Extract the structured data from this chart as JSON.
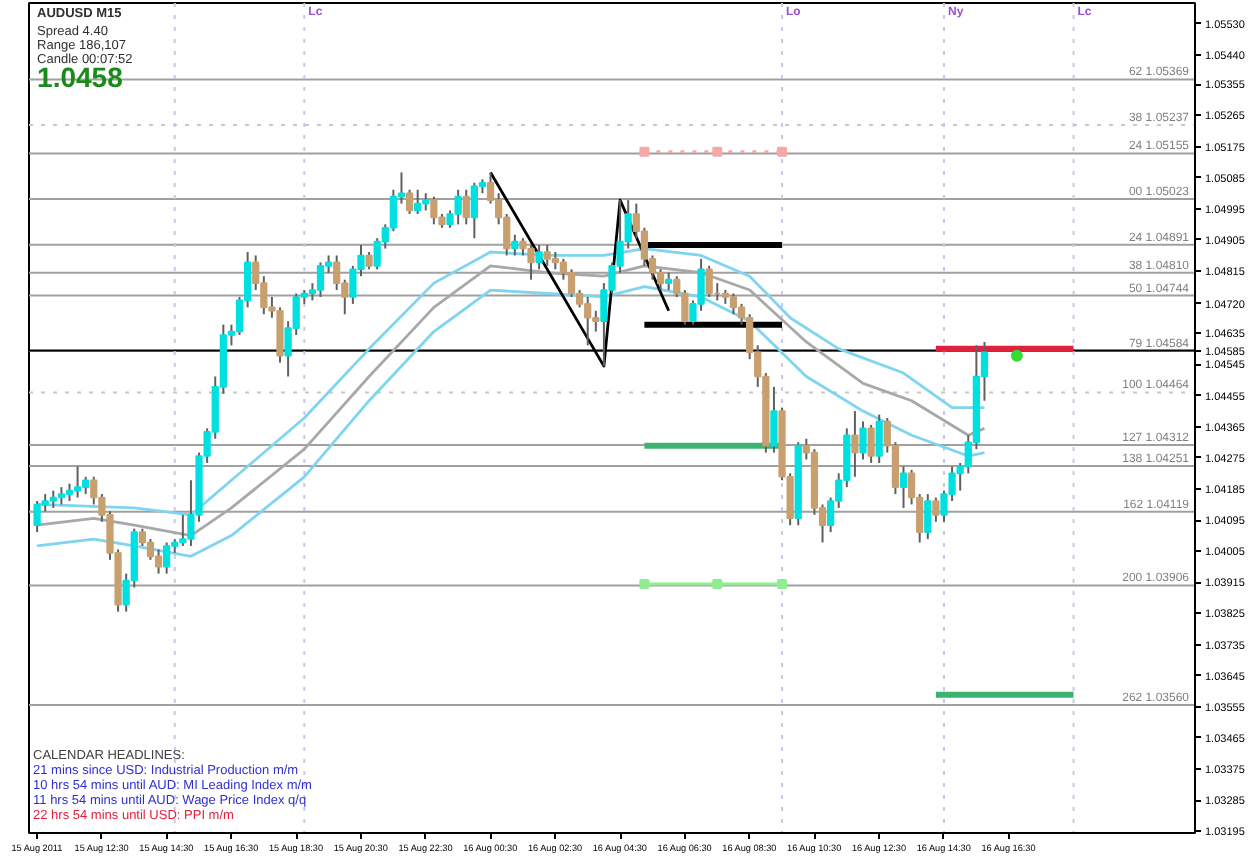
{
  "chart_data": {
    "type": "candlestick",
    "x": [
      "2011-08-15T10:30",
      "2011-08-15T10:45",
      "2011-08-15T11:00",
      "2011-08-15T11:15",
      "2011-08-15T11:30",
      "2011-08-15T11:45",
      "2011-08-15T12:00",
      "2011-08-15T12:15",
      "2011-08-15T12:30",
      "2011-08-15T12:45",
      "2011-08-15T13:00",
      "2011-08-15T13:15",
      "2011-08-15T13:30",
      "2011-08-15T13:45",
      "2011-08-15T14:00",
      "2011-08-15T14:15",
      "2011-08-15T14:30",
      "2011-08-15T14:45",
      "2011-08-15T15:00",
      "2011-08-15T15:15",
      "2011-08-15T15:30",
      "2011-08-15T15:45",
      "2011-08-15T16:00",
      "2011-08-15T16:15",
      "2011-08-15T16:30",
      "2011-08-15T16:45",
      "2011-08-15T17:00",
      "2011-08-15T17:15",
      "2011-08-15T17:30",
      "2011-08-15T17:45",
      "2011-08-15T18:00",
      "2011-08-15T18:15",
      "2011-08-15T18:30",
      "2011-08-15T18:45",
      "2011-08-15T19:00",
      "2011-08-15T19:15",
      "2011-08-15T19:30",
      "2011-08-15T19:45",
      "2011-08-15T20:00",
      "2011-08-15T20:15",
      "2011-08-15T20:30",
      "2011-08-15T20:45",
      "2011-08-15T21:00",
      "2011-08-15T21:15",
      "2011-08-15T21:30",
      "2011-08-15T21:45",
      "2011-08-15T22:00",
      "2011-08-15T22:15",
      "2011-08-15T22:30",
      "2011-08-15T22:45",
      "2011-08-15T23:00",
      "2011-08-15T23:15",
      "2011-08-15T23:30",
      "2011-08-15T23:45",
      "2011-08-16T00:00",
      "2011-08-16T00:15",
      "2011-08-16T00:30",
      "2011-08-16T00:45",
      "2011-08-16T01:00",
      "2011-08-16T01:15",
      "2011-08-16T01:30",
      "2011-08-16T01:45",
      "2011-08-16T02:00",
      "2011-08-16T02:15",
      "2011-08-16T02:30",
      "2011-08-16T02:45",
      "2011-08-16T03:00",
      "2011-08-16T03:15",
      "2011-08-16T03:30",
      "2011-08-16T03:45",
      "2011-08-16T04:00",
      "2011-08-16T04:15",
      "2011-08-16T04:30",
      "2011-08-16T04:45",
      "2011-08-16T05:00",
      "2011-08-16T05:15",
      "2011-08-16T05:30",
      "2011-08-16T05:45",
      "2011-08-16T06:00",
      "2011-08-16T06:15",
      "2011-08-16T06:30",
      "2011-08-16T06:45",
      "2011-08-16T07:00",
      "2011-08-16T07:15",
      "2011-08-16T07:30",
      "2011-08-16T07:45",
      "2011-08-16T08:00",
      "2011-08-16T08:15",
      "2011-08-16T08:30",
      "2011-08-16T08:45",
      "2011-08-16T09:00",
      "2011-08-16T09:15",
      "2011-08-16T09:30",
      "2011-08-16T09:45",
      "2011-08-16T10:00",
      "2011-08-16T10:15",
      "2011-08-16T10:30",
      "2011-08-16T10:45",
      "2011-08-16T11:00",
      "2011-08-16T11:15",
      "2011-08-16T11:30",
      "2011-08-16T11:45",
      "2011-08-16T12:00",
      "2011-08-16T12:15",
      "2011-08-16T12:30",
      "2011-08-16T12:45",
      "2011-08-16T13:00",
      "2011-08-16T13:15",
      "2011-08-16T13:30",
      "2011-08-16T13:45",
      "2011-08-16T14:00",
      "2011-08-16T14:15",
      "2011-08-16T14:30",
      "2011-08-16T14:45",
      "2011-08-16T15:00",
      "2011-08-16T15:15",
      "2011-08-16T15:30",
      "2011-08-16T15:45"
    ],
    "ohlc": [
      [
        1.0408,
        1.0415,
        1.0406,
        1.0414
      ],
      [
        1.0414,
        1.0417,
        1.0412,
        1.0415
      ],
      [
        1.0415,
        1.0418,
        1.0413,
        1.0416
      ],
      [
        1.0416,
        1.0419,
        1.0414,
        1.0417
      ],
      [
        1.0417,
        1.042,
        1.0415,
        1.0418
      ],
      [
        1.0418,
        1.0425,
        1.0416,
        1.0419
      ],
      [
        1.0419,
        1.0422,
        1.0417,
        1.0421
      ],
      [
        1.0421,
        1.0422,
        1.0414,
        1.0416
      ],
      [
        1.0416,
        1.0417,
        1.0409,
        1.0411
      ],
      [
        1.0411,
        1.0412,
        1.0398,
        1.04
      ],
      [
        1.04,
        1.0401,
        1.0383,
        1.0385
      ],
      [
        1.0385,
        1.0394,
        1.0383,
        1.0392
      ],
      [
        1.0392,
        1.0407,
        1.039,
        1.0406
      ],
      [
        1.0406,
        1.0407,
        1.0402,
        1.0403
      ],
      [
        1.0403,
        1.0404,
        1.0398,
        1.0399
      ],
      [
        1.0399,
        1.0401,
        1.0394,
        1.0396
      ],
      [
        1.0396,
        1.0403,
        1.0394,
        1.0402
      ],
      [
        1.0402,
        1.0404,
        1.04,
        1.0403
      ],
      [
        1.0403,
        1.0411,
        1.0402,
        1.0404
      ],
      [
        1.0404,
        1.0421,
        1.0402,
        1.0411
      ],
      [
        1.0411,
        1.0429,
        1.0409,
        1.0428
      ],
      [
        1.0428,
        1.0436,
        1.0426,
        1.0435
      ],
      [
        1.0435,
        1.0451,
        1.0433,
        1.0448
      ],
      [
        1.0448,
        1.0466,
        1.0446,
        1.0463
      ],
      [
        1.0463,
        1.0466,
        1.046,
        1.0464
      ],
      [
        1.0464,
        1.0474,
        1.0463,
        1.0473
      ],
      [
        1.0473,
        1.0487,
        1.0471,
        1.0484
      ],
      [
        1.0484,
        1.0486,
        1.0476,
        1.0478
      ],
      [
        1.0478,
        1.048,
        1.0469,
        1.0471
      ],
      [
        1.0471,
        1.0474,
        1.0468,
        1.047
      ],
      [
        1.047,
        1.0471,
        1.0455,
        1.0457
      ],
      [
        1.0457,
        1.0467,
        1.0451,
        1.0465
      ],
      [
        1.0465,
        1.0475,
        1.0463,
        1.0474
      ],
      [
        1.0474,
        1.0476,
        1.0472,
        1.0475
      ],
      [
        1.0475,
        1.0478,
        1.0473,
        1.0476
      ],
      [
        1.0476,
        1.0484,
        1.0474,
        1.0483
      ],
      [
        1.0483,
        1.0486,
        1.0481,
        1.0484
      ],
      [
        1.0484,
        1.0486,
        1.0476,
        1.0478
      ],
      [
        1.0478,
        1.0479,
        1.0469,
        1.0474
      ],
      [
        1.0474,
        1.0483,
        1.0472,
        1.0482
      ],
      [
        1.0482,
        1.0489,
        1.048,
        1.0486
      ],
      [
        1.0486,
        1.0487,
        1.0482,
        1.0483
      ],
      [
        1.0483,
        1.0491,
        1.0482,
        1.049
      ],
      [
        1.049,
        1.0495,
        1.0488,
        1.0494
      ],
      [
        1.0494,
        1.0505,
        1.0493,
        1.0503
      ],
      [
        1.0503,
        1.051,
        1.0501,
        1.0504
      ],
      [
        1.0504,
        1.0505,
        1.0498,
        1.0499
      ],
      [
        1.0499,
        1.0505,
        1.0498,
        1.0501
      ],
      [
        1.0501,
        1.0504,
        1.0499,
        1.0502
      ],
      [
        1.0502,
        1.0503,
        1.0495,
        1.0497
      ],
      [
        1.0497,
        1.0498,
        1.0494,
        1.0495
      ],
      [
        1.0495,
        1.0499,
        1.0494,
        1.0498
      ],
      [
        1.0498,
        1.0505,
        1.0495,
        1.0503
      ],
      [
        1.0503,
        1.0505,
        1.0495,
        1.0497
      ],
      [
        1.0497,
        1.0507,
        1.0491,
        1.0506
      ],
      [
        1.0506,
        1.0508,
        1.0504,
        1.0507
      ],
      [
        1.0507,
        1.051,
        1.0501,
        1.0502
      ],
      [
        1.0502,
        1.0504,
        1.0495,
        1.0497
      ],
      [
        1.0497,
        1.0498,
        1.0486,
        1.0488
      ],
      [
        1.0488,
        1.0492,
        1.0486,
        1.049
      ],
      [
        1.049,
        1.0491,
        1.0486,
        1.0488
      ],
      [
        1.0488,
        1.0489,
        1.0479,
        1.0484
      ],
      [
        1.0484,
        1.0489,
        1.0482,
        1.0487
      ],
      [
        1.0487,
        1.0489,
        1.0483,
        1.0485
      ],
      [
        1.0485,
        1.0487,
        1.0482,
        1.0484
      ],
      [
        1.0484,
        1.0485,
        1.0479,
        1.0481
      ],
      [
        1.0481,
        1.0482,
        1.0474,
        1.0475
      ],
      [
        1.0475,
        1.0476,
        1.0471,
        1.0472
      ],
      [
        1.0472,
        1.0474,
        1.046,
        1.0468
      ],
      [
        1.0468,
        1.047,
        1.0464,
        1.0467
      ],
      [
        1.0467,
        1.0478,
        1.0454,
        1.0476
      ],
      [
        1.0476,
        1.0484,
        1.0475,
        1.0483
      ],
      [
        1.0483,
        1.0502,
        1.0481,
        1.049
      ],
      [
        1.049,
        1.0502,
        1.0488,
        1.0498
      ],
      [
        1.0498,
        1.0501,
        1.0491,
        1.0493
      ],
      [
        1.0493,
        1.0494,
        1.0483,
        1.0485
      ],
      [
        1.0485,
        1.0486,
        1.0479,
        1.0481
      ],
      [
        1.0481,
        1.0482,
        1.0476,
        1.0478
      ],
      [
        1.0478,
        1.0481,
        1.0476,
        1.0479
      ],
      [
        1.0479,
        1.048,
        1.0474,
        1.0475
      ],
      [
        1.0475,
        1.0476,
        1.0466,
        1.0467
      ],
      [
        1.0467,
        1.0473,
        1.0466,
        1.0472
      ],
      [
        1.0472,
        1.0485,
        1.047,
        1.0482
      ],
      [
        1.0482,
        1.0483,
        1.0474,
        1.0475
      ],
      [
        1.0475,
        1.0478,
        1.0473,
        1.0475
      ],
      [
        1.0475,
        1.0476,
        1.0472,
        1.0474
      ],
      [
        1.0474,
        1.0475,
        1.0469,
        1.0471
      ],
      [
        1.0471,
        1.0472,
        1.0466,
        1.0468
      ],
      [
        1.0468,
        1.0469,
        1.0456,
        1.0458
      ],
      [
        1.0458,
        1.046,
        1.0448,
        1.0451
      ],
      [
        1.0451,
        1.0452,
        1.0429,
        1.0431
      ],
      [
        1.0431,
        1.0448,
        1.0429,
        1.0441
      ],
      [
        1.0441,
        1.0442,
        1.0421,
        1.0422
      ],
      [
        1.0422,
        1.0423,
        1.0408,
        1.041
      ],
      [
        1.041,
        1.0432,
        1.0408,
        1.0431
      ],
      [
        1.0431,
        1.0433,
        1.0427,
        1.0429
      ],
      [
        1.0429,
        1.043,
        1.0411,
        1.0413
      ],
      [
        1.0413,
        1.0414,
        1.0403,
        1.0408
      ],
      [
        1.0408,
        1.0416,
        1.0406,
        1.0415
      ],
      [
        1.0415,
        1.0423,
        1.0413,
        1.0421
      ],
      [
        1.0421,
        1.0436,
        1.0419,
        1.0434
      ],
      [
        1.0434,
        1.0441,
        1.0422,
        1.0429
      ],
      [
        1.0429,
        1.0438,
        1.0427,
        1.0436
      ],
      [
        1.0436,
        1.0437,
        1.0426,
        1.0428
      ],
      [
        1.0428,
        1.044,
        1.0426,
        1.0438
      ],
      [
        1.0438,
        1.0439,
        1.0429,
        1.0431
      ],
      [
        1.0431,
        1.0432,
        1.0417,
        1.0419
      ],
      [
        1.0419,
        1.0425,
        1.0413,
        1.0423
      ],
      [
        1.0423,
        1.0424,
        1.0414,
        1.0416
      ],
      [
        1.0416,
        1.0417,
        1.0403,
        1.0406
      ],
      [
        1.0406,
        1.0417,
        1.0404,
        1.0415
      ],
      [
        1.0415,
        1.0416,
        1.0409,
        1.0411
      ],
      [
        1.0411,
        1.0418,
        1.0409,
        1.0417
      ],
      [
        1.0417,
        1.0425,
        1.0415,
        1.0423
      ],
      [
        1.0423,
        1.0426,
        1.0418,
        1.0425
      ],
      [
        1.0425,
        1.0434,
        1.0423,
        1.0432
      ],
      [
        1.0432,
        1.046,
        1.043,
        1.0451
      ],
      [
        1.0451,
        1.0461,
        1.0444,
        1.0458
      ]
    ],
    "colors": [
      "#00e0e0",
      "#00e0e0",
      "#00e0e0",
      "#00e0e0",
      "#00e0e0",
      "#00e0e0",
      "#00e0e0",
      "#c8a070",
      "#c8a070",
      "#c8a070",
      "#c8a070",
      "#00e0e0",
      "#00e0e0",
      "#c8a070",
      "#c8a070",
      "#c8a070",
      "#00e0e0",
      "#00e0e0",
      "#00e0e0",
      "#00e0e0",
      "#00e0e0",
      "#00e0e0",
      "#00e0e0",
      "#00e0e0",
      "#00e0e0",
      "#00e0e0",
      "#00e0e0",
      "#c8a070",
      "#c8a070",
      "#c8a070",
      "#c8a070",
      "#00e0e0",
      "#00e0e0",
      "#00e0e0",
      "#00e0e0",
      "#00e0e0",
      "#00e0e0",
      "#c8a070",
      "#c8a070",
      "#00e0e0",
      "#00e0e0",
      "#c8a070",
      "#00e0e0",
      "#00e0e0",
      "#00e0e0",
      "#00e0e0",
      "#c8a070",
      "#00e0e0",
      "#00e0e0",
      "#c8a070",
      "#c8a070",
      "#00e0e0",
      "#00e0e0",
      "#c8a070",
      "#00e0e0",
      "#00e0e0",
      "#c8a070",
      "#c8a070",
      "#c8a070",
      "#00e0e0",
      "#c8a070",
      "#c8a070",
      "#00e0e0",
      "#c8a070",
      "#c8a070",
      "#c8a070",
      "#c8a070",
      "#c8a070",
      "#c8a070",
      "#c8a070",
      "#00e0e0",
      "#00e0e0",
      "#00e0e0",
      "#00e0e0",
      "#c8a070",
      "#c8a070",
      "#c8a070",
      "#c8a070",
      "#00e0e0",
      "#c8a070",
      "#c8a070",
      "#00e0e0",
      "#00e0e0",
      "#c8a070",
      "#c8a070",
      "#c8a070",
      "#c8a070",
      "#c8a070",
      "#c8a070",
      "#c8a070",
      "#c8a070",
      "#00e0e0",
      "#c8a070",
      "#c8a070",
      "#00e0e0",
      "#c8a070",
      "#c8a070",
      "#c8a070",
      "#00e0e0",
      "#00e0e0",
      "#00e0e0",
      "#c8a070",
      "#00e0e0",
      "#c8a070",
      "#00e0e0",
      "#c8a070",
      "#c8a070",
      "#00e0e0",
      "#c8a070",
      "#c8a070",
      "#00e0e0",
      "#c8a070",
      "#00e0e0",
      "#00e0e0",
      "#00e0e0",
      "#00e0e0",
      "#00e0e0",
      "#00e0e0"
    ],
    "series": [
      {
        "type": "line",
        "color": "#7fd4f0",
        "x": [
          "2011-08-15T10:30",
          "2011-08-15T13:30",
          "2011-08-15T15:15",
          "2011-08-15T16:30",
          "2011-08-15T18:45",
          "2011-08-15T20:45",
          "2011-08-15T22:45",
          "2011-08-16T00:30",
          "2011-08-16T02:15",
          "2011-08-16T04:00",
          "2011-08-16T05:15",
          "2011-08-16T07:00",
          "2011-08-16T08:30",
          "2011-08-16T09:45",
          "2011-08-16T11:15",
          "2011-08-16T13:15",
          "2011-08-16T14:45",
          "2011-08-16T15:45"
        ],
        "values": [
          1.0414,
          1.0413,
          1.0411,
          1.0421,
          1.0439,
          1.0459,
          1.0478,
          1.0487,
          1.0486,
          1.0486,
          1.0488,
          1.0486,
          1.048,
          1.0468,
          1.0459,
          1.0452,
          1.0442,
          1.0442
        ]
      },
      {
        "type": "line",
        "color": "#a8a8a8",
        "x": [
          "2011-08-15T10:30",
          "2011-08-15T12:15",
          "2011-08-15T13:30",
          "2011-08-15T15:15",
          "2011-08-15T16:30",
          "2011-08-15T18:45",
          "2011-08-15T20:45",
          "2011-08-15T22:45",
          "2011-08-16T00:30",
          "2011-08-16T02:15",
          "2011-08-16T04:00",
          "2011-08-16T05:15",
          "2011-08-16T07:00",
          "2011-08-16T08:30",
          "2011-08-16T10:15",
          "2011-08-16T12:00",
          "2011-08-16T13:30",
          "2011-08-16T15:15",
          "2011-08-16T15:45"
        ],
        "values": [
          1.0408,
          1.041,
          1.0408,
          1.0405,
          1.0413,
          1.043,
          1.0451,
          1.0471,
          1.0483,
          1.0481,
          1.048,
          1.0483,
          1.0481,
          1.0476,
          1.0461,
          1.0449,
          1.0444,
          1.0434,
          1.0436
        ]
      },
      {
        "type": "line",
        "color": "#7fd4f0",
        "x": [
          "2011-08-15T10:30",
          "2011-08-15T12:15",
          "2011-08-15T13:30",
          "2011-08-15T15:15",
          "2011-08-15T16:30",
          "2011-08-15T18:45",
          "2011-08-15T20:45",
          "2011-08-15T22:45",
          "2011-08-16T00:30",
          "2011-08-16T02:15",
          "2011-08-16T04:00",
          "2011-08-16T05:15",
          "2011-08-16T07:00",
          "2011-08-16T08:30",
          "2011-08-16T10:15",
          "2011-08-16T12:00",
          "2011-08-16T13:30",
          "2011-08-16T15:15",
          "2011-08-16T15:45"
        ],
        "values": [
          1.0402,
          1.0404,
          1.0402,
          1.0399,
          1.0405,
          1.0422,
          1.0444,
          1.0464,
          1.0476,
          1.0475,
          1.0474,
          1.0477,
          1.0474,
          1.0467,
          1.0451,
          1.0441,
          1.0434,
          1.0428,
          1.0429
        ]
      },
      {
        "type": "line",
        "color": "#000000",
        "x": [
          "2011-08-16T00:30",
          "2011-08-16T04:00",
          "2011-08-16T04:30",
          "2011-08-16T06:00"
        ],
        "values": [
          1.051,
          1.0454,
          1.0502,
          1.047
        ]
      },
      {
        "type": "line",
        "color": "#000000",
        "x": [
          "2011-08-16T05:15",
          "2011-08-16T09:30"
        ],
        "values": [
          1.0489,
          1.0489
        ]
      },
      {
        "type": "line",
        "color": "#000000",
        "x": [
          "2011-08-16T05:15",
          "2011-08-16T09:30"
        ],
        "values": [
          1.0466,
          1.0466
        ]
      },
      {
        "type": "line",
        "color": "#f4a8a8",
        "line_style": "dotted",
        "marker": "square",
        "x": [
          "2011-08-16T05:15",
          "2011-08-16T07:30",
          "2011-08-16T09:30"
        ],
        "values": [
          1.0516,
          1.0516,
          1.0516
        ]
      },
      {
        "type": "line",
        "color": "#3cb371",
        "x": [
          "2011-08-16T05:15",
          "2011-08-16T09:30"
        ],
        "values": [
          1.0431,
          1.0431
        ]
      },
      {
        "type": "line",
        "color": "#90ee90",
        "marker": "square",
        "x": [
          "2011-08-16T05:15",
          "2011-08-16T07:30",
          "2011-08-16T09:30"
        ],
        "values": [
          1.0391,
          1.0391,
          1.0391
        ]
      },
      {
        "type": "line",
        "color": "#e0203c",
        "x": [
          "2011-08-16T14:15",
          "2011-08-16T18:30"
        ],
        "values": [
          1.0459,
          1.0459
        ]
      },
      {
        "type": "line",
        "color": "#3cb371",
        "x": [
          "2011-08-16T14:15",
          "2011-08-16T18:30"
        ],
        "values": [
          1.0359,
          1.0359
        ]
      },
      {
        "type": "scatter",
        "color": "#33dd33",
        "marker": "circle",
        "x": [
          "2011-08-16T16:45"
        ],
        "values": [
          1.0457
        ]
      }
    ],
    "ref_lines": [
      {
        "axis": "y",
        "value": 1.05369,
        "label": "62 1.05369",
        "color": "#a0a0a0"
      },
      {
        "axis": "y",
        "value": 1.05237,
        "label": "38 1.05237",
        "color": "#c8c8c8",
        "line_style": "dotted"
      },
      {
        "axis": "y",
        "value": 1.05155,
        "label": "24 1.05155",
        "color": "#a0a0a0"
      },
      {
        "axis": "y",
        "value": 1.05023,
        "label": "00 1.05023",
        "color": "#a0a0a0"
      },
      {
        "axis": "y",
        "value": 1.04891,
        "label": "24 1.04891",
        "color": "#a0a0a0"
      },
      {
        "axis": "y",
        "value": 1.0481,
        "label": "38 1.04810",
        "color": "#a0a0a0"
      },
      {
        "axis": "y",
        "value": 1.04744,
        "label": "50 1.04744",
        "color": "#a0a0a0"
      },
      {
        "axis": "y",
        "value": 1.04584,
        "label": "79 1.04584",
        "color": "#a0a0a0"
      },
      {
        "axis": "y",
        "value": 1.04464,
        "label": "100 1.04464",
        "color": "#c8c8c8",
        "line_style": "dotted"
      },
      {
        "axis": "y",
        "value": 1.04312,
        "label": "127 1.04312",
        "color": "#a0a0a0"
      },
      {
        "axis": "y",
        "value": 1.04251,
        "label": "138 1.04251",
        "color": "#a0a0a0"
      },
      {
        "axis": "y",
        "value": 1.04119,
        "label": "162 1.04119",
        "color": "#a0a0a0"
      },
      {
        "axis": "y",
        "value": 1.03906,
        "label": "200 1.03906",
        "color": "#a0a0a0"
      },
      {
        "axis": "y",
        "value": 1.0356,
        "label": "262 1.03560",
        "color": "#a0a0a0"
      },
      {
        "axis": "y",
        "value": 1.04585,
        "color": "#000000"
      },
      {
        "axis": "x",
        "value": "2011-08-15T14:45",
        "color": "#c8c8e8",
        "line_style": "dotted"
      },
      {
        "axis": "x",
        "value": "2011-08-15T18:45",
        "label": "Lc",
        "color": "#c8c8e8",
        "line_style": "dotted"
      },
      {
        "axis": "x",
        "value": "2011-08-16T09:30",
        "label": "Lo",
        "color": "#c8c8e8",
        "line_style": "dotted"
      },
      {
        "axis": "x",
        "value": "2011-08-16T14:30",
        "label": "Ny",
        "color": "#c8c8e8",
        "line_style": "dotted"
      },
      {
        "axis": "x",
        "value": "2011-08-16T18:30",
        "label": "Lc",
        "color": "#c8c8e8",
        "line_style": "dotted"
      }
    ],
    "annotations": [
      "AUDUSD   M15",
      "Spread  4.40",
      "Range  186,107",
      "Candle  00:07:52",
      "1.0458",
      "CALENDAR HEADLINES:",
      "21 mins since USD: Industrial Production m/m",
      "10 hrs 54 mins until AUD: MI Leading Index m/m",
      "11 hrs 54 mins until AUD: Wage Price Index q/q",
      "22 hrs 54 mins until USD: PPI m/m"
    ],
    "xlim": [
      "2011-08-15T10:15",
      "2011-08-16T22:15"
    ],
    "ylim": [
      1.0319,
      1.0559
    ],
    "xticks": [
      {
        "value": "2011-08-15T10:30",
        "label": "15 Aug 2011"
      },
      {
        "value": "2011-08-15T12:30",
        "label": "15 Aug 12:30"
      },
      {
        "value": "2011-08-15T14:30",
        "label": "15 Aug 14:30"
      },
      {
        "value": "2011-08-15T16:30",
        "label": "15 Aug 16:30"
      },
      {
        "value": "2011-08-15T18:30",
        "label": "15 Aug 18:30"
      },
      {
        "value": "2011-08-15T20:30",
        "label": "15 Aug 20:30"
      },
      {
        "value": "2011-08-15T22:30",
        "label": "15 Aug 22:30"
      },
      {
        "value": "2011-08-16T00:30",
        "label": "16 Aug 00:30"
      },
      {
        "value": "2011-08-16T02:30",
        "label": "16 Aug 02:30"
      },
      {
        "value": "2011-08-16T04:30",
        "label": "16 Aug 04:30"
      },
      {
        "value": "2011-08-16T06:30",
        "label": "16 Aug 06:30"
      },
      {
        "value": "2011-08-16T08:30",
        "label": "16 Aug 08:30"
      },
      {
        "value": "2011-08-16T10:30",
        "label": "16 Aug 10:30"
      },
      {
        "value": "2011-08-16T12:30",
        "label": "16 Aug 12:30"
      },
      {
        "value": "2011-08-16T14:30",
        "label": "16 Aug 14:30"
      },
      {
        "value": "2011-08-16T16:30",
        "label": "16 Aug 16:30"
      }
    ],
    "yticks": [
      {
        "value": 1.0553,
        "label": "1.05530"
      },
      {
        "value": 1.0544,
        "label": "1.05440"
      },
      1.05355,
      1.05265,
      1.05175,
      1.05085,
      1.04995,
      1.04905,
      1.04815,
      {
        "value": 1.0472,
        "label": "1.04720"
      },
      1.04635,
      {
        "value": 1.04585,
        "label": "1.04585"
      },
      1.04545,
      1.04455,
      1.04365,
      1.04275,
      1.04185,
      1.04095,
      1.04005,
      1.03915,
      1.03825,
      1.03735,
      1.03645,
      1.03555,
      1.03465,
      1.03375,
      1.03285,
      1.03195
    ],
    "grid": false
  }
}
